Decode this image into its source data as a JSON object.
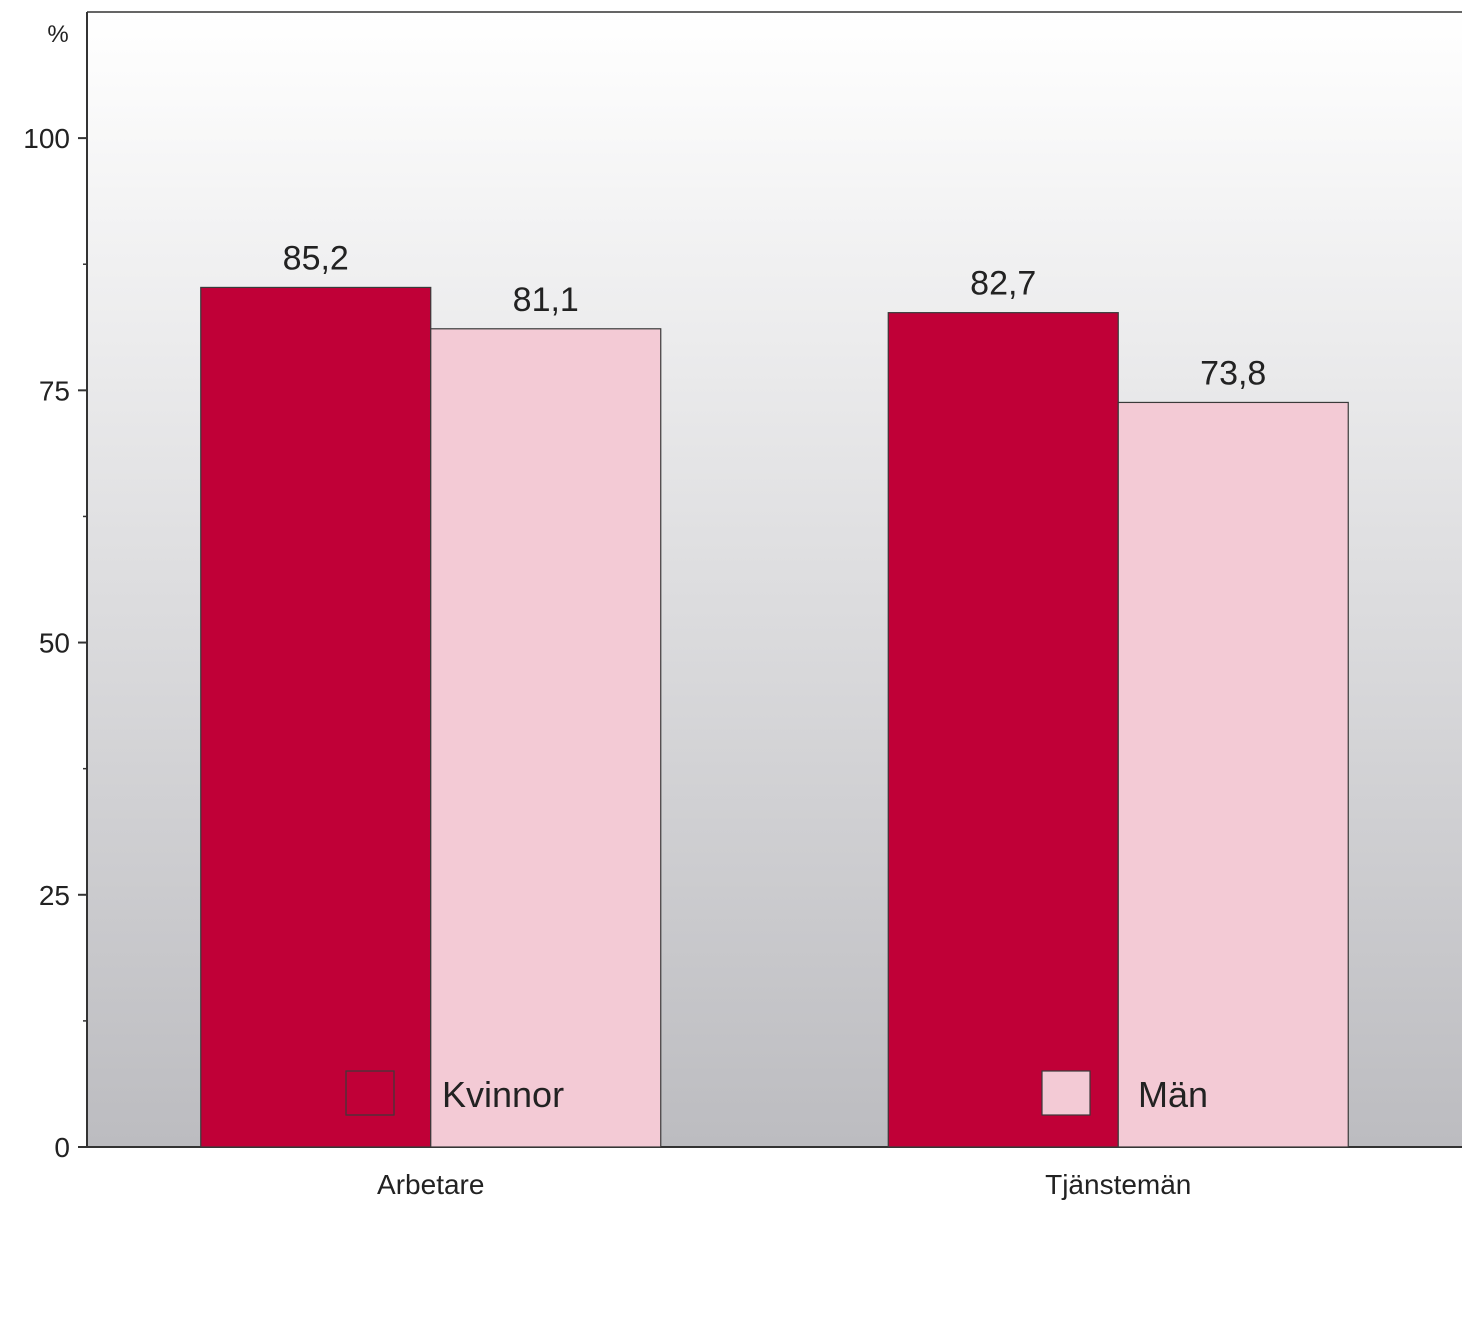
{
  "chart_data": {
    "type": "bar",
    "unit_label": "%",
    "categories": [
      "Arbetare",
      "Tjänstemän"
    ],
    "series": [
      {
        "name": "Kvinnor",
        "values": [
          85.2,
          82.7
        ],
        "labels": [
          "85,2",
          "82,7"
        ],
        "color": "#c00037"
      },
      {
        "name": "Män",
        "values": [
          81.1,
          73.8
        ],
        "labels": [
          "81,1",
          "73,8"
        ],
        "color": "#f3cad5"
      }
    ],
    "ylim": [
      0,
      112.5
    ],
    "yticks": [
      0,
      25,
      50,
      75,
      100
    ],
    "minor_yticks": [
      12.5,
      37.5,
      62.5,
      87.5
    ],
    "legend_position": "bottom",
    "background": "gradient white to grey",
    "grid": false
  }
}
